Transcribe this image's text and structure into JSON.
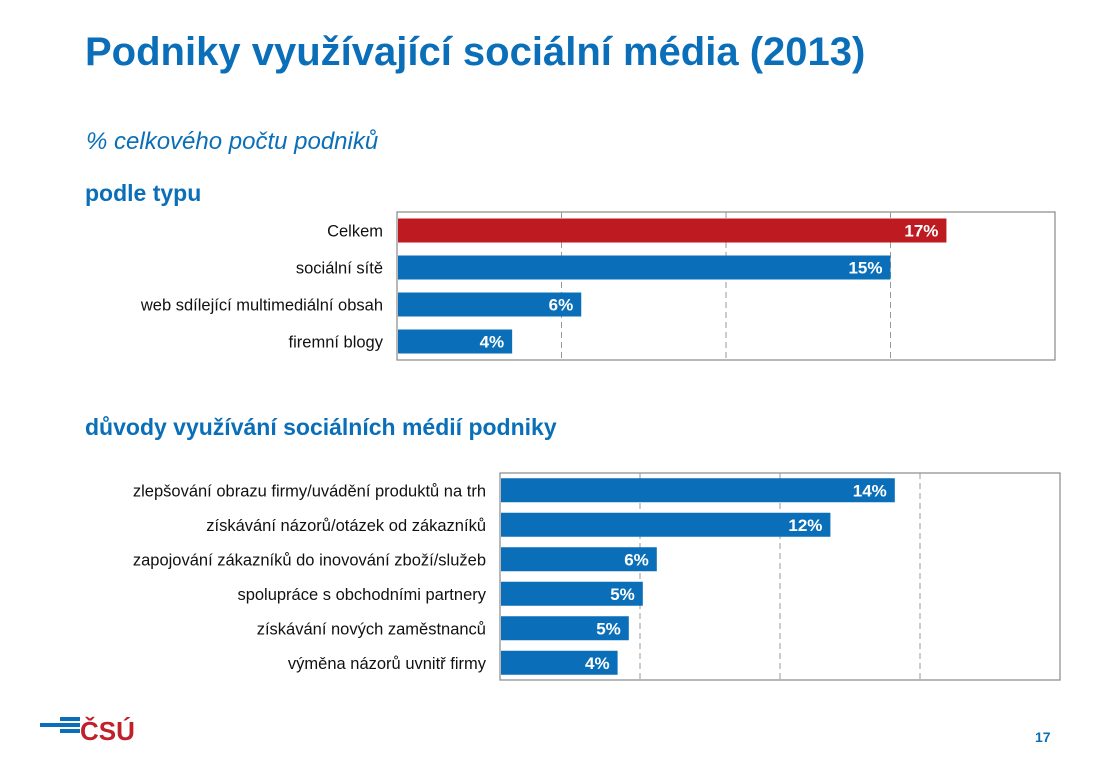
{
  "header": {
    "title": "Podniky využívající sociální média (2013)",
    "subtitle": "% celkového počtu podniků"
  },
  "colors": {
    "accent": "#0a6fb8",
    "highlight": "#bd1a22",
    "bar": "#0a6fb8"
  },
  "chart_data": [
    {
      "type": "bar",
      "orientation": "horizontal",
      "title": "podle typu",
      "categories": [
        "Celkem",
        "sociální sítě",
        "web sdílející multimediální obsah",
        "firemní blogy"
      ],
      "values": [
        16.7,
        15.0,
        5.6,
        3.5
      ],
      "data_labels": [
        "17%",
        "15%",
        "6%",
        "4%"
      ],
      "highlight_index": 0,
      "xlim": [
        0,
        20
      ],
      "grid": true
    },
    {
      "type": "bar",
      "orientation": "horizontal",
      "title": "důvody využívání sociálních médií podniky",
      "categories": [
        "zlepšování obrazu firmy/uvádění produktů na trh",
        "získávání názorů/otázek od zákazníků",
        "zapojování zákazníků do inovování zboží/služeb",
        "spolupráce s obchodními partnery",
        "získávání nových zaměstnanců",
        "výměna názorů uvnitř firmy"
      ],
      "values": [
        14.1,
        11.8,
        5.6,
        5.1,
        4.6,
        4.2
      ],
      "data_labels": [
        "14%",
        "12%",
        "6%",
        "5%",
        "5%",
        "4%"
      ],
      "xlim": [
        0,
        20
      ],
      "grid": true
    }
  ],
  "footer": {
    "logo_text": "ČSÚ",
    "page_number": "17"
  }
}
